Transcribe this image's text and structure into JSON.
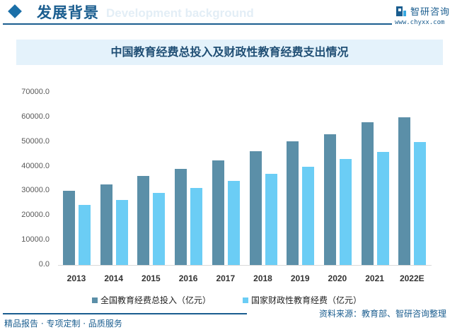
{
  "header": {
    "title": "发展背景",
    "subtitle": "Development background",
    "brand": "智研咨询",
    "url": "www.chyxx.com"
  },
  "chart_title": "中国教育经费总投入及财政性教育经费支出情况",
  "colors": {
    "series1": "#5b8fa8",
    "series2": "#6bcdf5",
    "brand": "#1a5d8f"
  },
  "chart_data": {
    "type": "bar",
    "title": "中国教育经费总投入及财政性教育经费支出情况",
    "xlabel": "",
    "ylabel": "",
    "ylim": [
      0,
      70000
    ],
    "yticks": [
      "0.0",
      "10000.0",
      "20000.0",
      "30000.0",
      "40000.0",
      "50000.0",
      "60000.0",
      "70000.0"
    ],
    "grid": false,
    "legend_position": "bottom",
    "categories": [
      "2013",
      "2014",
      "2015",
      "2016",
      "2017",
      "2018",
      "2019",
      "2020",
      "2021",
      "2022E"
    ],
    "series": [
      {
        "name": "全国教育经费总投入（亿元）",
        "values": [
          30100,
          32800,
          36100,
          38900,
          42600,
          46100,
          50200,
          53000,
          57900,
          60000
        ]
      },
      {
        "name": "国家财政性教育经费（亿元）",
        "values": [
          24500,
          26400,
          29200,
          31400,
          34200,
          36900,
          40000,
          42900,
          45800,
          49800
        ]
      }
    ]
  },
  "legend": {
    "item1": "全国教育经费总投入（亿元）",
    "item2": "国家财政性教育经费（亿元）"
  },
  "footer": {
    "source": "资料来源：教育部、智研咨询整理",
    "tagline": "精品报告 · 专项定制 · 品质服务"
  }
}
